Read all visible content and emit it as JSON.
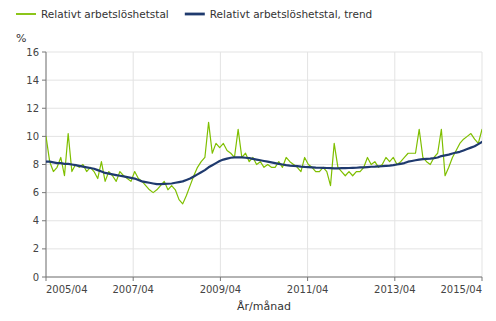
{
  "chart_data": {
    "type": "line",
    "title": "",
    "xlabel": "År/månad",
    "ylabel": "%",
    "ylim": [
      0,
      16
    ],
    "yticks": [
      0,
      2,
      4,
      6,
      8,
      10,
      12,
      14,
      16
    ],
    "xlim": [
      0,
      120
    ],
    "xticks": [
      {
        "value": 0,
        "label": "2005/04"
      },
      {
        "value": 24,
        "label": "2007/04"
      },
      {
        "value": 48,
        "label": "2009/04"
      },
      {
        "value": 72,
        "label": "2011/04"
      },
      {
        "value": 96,
        "label": "2013/04"
      },
      {
        "value": 120,
        "label": "2015/04"
      }
    ],
    "grid": true,
    "legend": "top",
    "x": [
      0,
      1.0169,
      2.0339,
      3.0508,
      4.0678,
      5.0847,
      6.1017,
      7.1186,
      8.1356,
      9.1525,
      10.1695,
      11.1864,
      12.2034,
      13.2203,
      14.2373,
      15.2542,
      16.2712,
      17.2881,
      18.3051,
      19.322,
      20.339,
      21.3559,
      22.3729,
      23.3898,
      24.4068,
      25.4237,
      26.4407,
      27.4576,
      28.4746,
      29.4915,
      30.5085,
      31.5254,
      32.5424,
      33.5593,
      34.5763,
      35.5932,
      36.6102,
      37.6271,
      38.6441,
      39.661,
      40.678,
      41.6949,
      42.7119,
      43.7288,
      44.7458,
      45.7627,
      46.7797,
      47.7966,
      48.8136,
      49.8305,
      50.8475,
      51.8644,
      52.8814,
      53.8983,
      54.9153,
      55.9322,
      56.9492,
      57.9661,
      58.9831,
      60,
      61.0169,
      62.0339,
      63.0508,
      64.0678,
      65.0847,
      66.1017,
      67.1186,
      68.1356,
      69.1525,
      70.1695,
      71.1864,
      72.2034,
      73.2203,
      74.2373,
      75.2542,
      76.2712,
      77.2881,
      78.3051,
      79.322,
      80.339,
      81.3559,
      82.3729,
      83.3898,
      84.4068,
      85.4237,
      86.4407,
      87.4576,
      88.4746,
      89.4915,
      90.5085,
      91.5254,
      92.5424,
      93.5593,
      94.5763,
      95.5932,
      96.6102,
      97.6271,
      98.6441,
      99.661,
      100.678,
      101.6949,
      102.7119,
      103.7288,
      104.7458,
      105.7627,
      106.7797,
      107.7966,
      108.8136,
      109.8305,
      110.8475,
      111.8644,
      112.8814,
      113.8983,
      114.9153,
      115.9322,
      116.9492,
      117.9661,
      118.9831,
      120
    ],
    "series": [
      {
        "name": "Relativt arbetslöshetstal",
        "color": "#7FBF00",
        "values": [
          10.0,
          8.2,
          7.5,
          7.8,
          8.5,
          7.2,
          10.2,
          7.5,
          8.0,
          7.8,
          8.0,
          7.5,
          7.8,
          7.5,
          7.0,
          8.2,
          6.8,
          7.5,
          7.2,
          6.8,
          7.5,
          7.2,
          7.0,
          6.8,
          7.5,
          7.0,
          6.8,
          6.5,
          6.2,
          6.0,
          6.2,
          6.5,
          6.8,
          6.2,
          6.5,
          6.2,
          5.5,
          5.2,
          5.8,
          6.5,
          7.2,
          7.8,
          8.2,
          8.5,
          11.0,
          8.8,
          9.5,
          9.2,
          9.5,
          9.0,
          8.8,
          8.5,
          10.5,
          8.5,
          8.8,
          8.2,
          8.5,
          8.0,
          8.2,
          7.8,
          8.0,
          7.8,
          7.8,
          8.2,
          7.8,
          8.5,
          8.2,
          8.0,
          7.8,
          7.5,
          8.5,
          8.0,
          7.8,
          7.5,
          7.5,
          7.8,
          7.5,
          6.5,
          9.5,
          7.8,
          7.5,
          7.2,
          7.5,
          7.2,
          7.5,
          7.5,
          7.8,
          8.5,
          8.0,
          8.2,
          7.8,
          8.0,
          8.5,
          8.2,
          8.5,
          8.0,
          8.2,
          8.5,
          8.8,
          8.8,
          8.8,
          10.5,
          8.5,
          8.2,
          8.0,
          8.5,
          8.8,
          10.5,
          7.2,
          7.8,
          8.5,
          9.0,
          9.5,
          9.8,
          10.0,
          10.2,
          9.8,
          9.5,
          10.5
        ]
      },
      {
        "name": "Relativt arbetslöshetstal, trend",
        "color": "#1F3A6E",
        "values": [
          8.2,
          8.2,
          8.15,
          8.1,
          8.1,
          8.05,
          8.05,
          8.0,
          7.95,
          7.9,
          7.85,
          7.8,
          7.75,
          7.7,
          7.6,
          7.5,
          7.4,
          7.35,
          7.3,
          7.25,
          7.2,
          7.15,
          7.1,
          7.05,
          7.0,
          6.9,
          6.8,
          6.75,
          6.7,
          6.65,
          6.6,
          6.6,
          6.62,
          6.63,
          6.65,
          6.7,
          6.75,
          6.8,
          6.9,
          7.0,
          7.15,
          7.3,
          7.45,
          7.6,
          7.8,
          7.95,
          8.1,
          8.25,
          8.35,
          8.42,
          8.48,
          8.5,
          8.5,
          8.5,
          8.48,
          8.45,
          8.4,
          8.35,
          8.3,
          8.25,
          8.2,
          8.15,
          8.1,
          8.05,
          8.0,
          7.95,
          7.92,
          7.9,
          7.88,
          7.85,
          7.83,
          7.82,
          7.8,
          7.78,
          7.77,
          7.76,
          7.75,
          7.74,
          7.73,
          7.73,
          7.74,
          7.74,
          7.75,
          7.76,
          7.77,
          7.79,
          7.8,
          7.82,
          7.84,
          7.85,
          7.87,
          7.88,
          7.9,
          7.92,
          7.95,
          8.0,
          8.05,
          8.1,
          8.2,
          8.25,
          8.3,
          8.35,
          8.38,
          8.4,
          8.42,
          8.45,
          8.5,
          8.6,
          8.65,
          8.7,
          8.78,
          8.85,
          8.9,
          9.0,
          9.1,
          9.2,
          9.3,
          9.45,
          9.6
        ]
      }
    ]
  }
}
